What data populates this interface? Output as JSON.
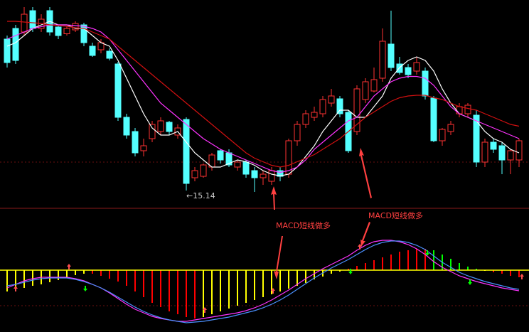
{
  "chart_data": [
    {
      "type": "candlestick",
      "ylim": [
        14.64,
        20.5
      ],
      "up_color": "#ff3232",
      "down_color": "#54ffff",
      "open": [
        19.4,
        19.7,
        19.6,
        20.2,
        19.7,
        20.2,
        19.74,
        19.55,
        19.66,
        19.8,
        19.2,
        19.1,
        19.06,
        18.7,
        17.2,
        16.8,
        16.26,
        16.6,
        16.8,
        17.06,
        16.7,
        17.14,
        15.5,
        15.54,
        15.8,
        16.26,
        16.2,
        15.8,
        15.94,
        15.7,
        15.5,
        15.4,
        15.7,
        15.6,
        16.54,
        17.0,
        17.2,
        17.3,
        17.6,
        17.72,
        17.34,
        16.8,
        17.7,
        17.94,
        18.3,
        19.26,
        18.7,
        18.6,
        18.5,
        18.5,
        17.74,
        16.54,
        16.8,
        17.3,
        17.3,
        17.26,
        15.94,
        16.5,
        16.4,
        16.0,
        16.0
      ],
      "high": [
        19.5,
        19.8,
        20.3,
        20.3,
        20.1,
        20.3,
        19.8,
        19.76,
        19.9,
        19.86,
        19.3,
        19.4,
        19.14,
        18.76,
        17.3,
        16.9,
        16.6,
        17.1,
        17.2,
        17.1,
        17.0,
        17.2,
        15.8,
        15.9,
        16.2,
        16.3,
        16.3,
        16.0,
        16.0,
        15.8,
        15.7,
        15.8,
        15.8,
        16.6,
        17.1,
        17.4,
        17.5,
        17.8,
        18.0,
        17.8,
        17.4,
        18.1,
        18.3,
        18.6,
        19.7,
        20.2,
        18.9,
        18.7,
        18.9,
        18.6,
        17.8,
        16.9,
        17.1,
        17.6,
        17.6,
        17.4,
        16.6,
        16.6,
        16.5,
        16.3,
        16.6
      ],
      "low": [
        18.6,
        18.7,
        19.5,
        19.6,
        19.6,
        19.5,
        19.4,
        19.5,
        19.6,
        19.2,
        18.9,
        19.0,
        18.8,
        17.1,
        16.6,
        16.1,
        16.1,
        16.5,
        16.7,
        16.7,
        16.6,
        15.14,
        15.4,
        15.5,
        15.7,
        15.9,
        15.8,
        15.7,
        15.5,
        15.1,
        15.3,
        15.3,
        15.4,
        15.5,
        16.4,
        16.9,
        17.1,
        17.2,
        17.5,
        17.2,
        16.2,
        16.7,
        17.6,
        17.9,
        18.2,
        18.5,
        18.4,
        18.3,
        18.4,
        17.7,
        16.5,
        16.4,
        16.7,
        17.2,
        17.2,
        15.8,
        15.8,
        16.2,
        15.6,
        15.6,
        15.8
      ],
      "close": [
        18.74,
        18.8,
        20.1,
        19.7,
        19.96,
        19.6,
        19.5,
        19.7,
        19.84,
        19.3,
        18.94,
        19.3,
        18.86,
        17.2,
        16.7,
        16.2,
        16.4,
        17.0,
        17.1,
        16.8,
        16.9,
        15.34,
        15.7,
        15.86,
        16.14,
        16.0,
        15.86,
        15.94,
        15.6,
        15.5,
        15.6,
        15.7,
        15.54,
        16.54,
        17.0,
        17.3,
        17.34,
        17.7,
        17.8,
        17.3,
        16.26,
        18.0,
        18.2,
        18.26,
        19.34,
        18.6,
        18.46,
        18.4,
        18.74,
        17.8,
        16.54,
        16.86,
        17.0,
        17.5,
        17.54,
        15.94,
        16.5,
        16.3,
        16.0,
        16.26,
        16.54
      ],
      "series": [
        {
          "color": "#ffffff",
          "values": [
            19.2,
            19.3,
            19.5,
            19.7,
            19.8,
            19.9,
            19.8,
            19.8,
            19.7,
            19.7,
            19.5,
            19.3,
            19.2,
            18.8,
            18.3,
            17.8,
            17.3,
            16.9,
            16.7,
            16.7,
            16.8,
            16.5,
            16.2,
            16.0,
            15.8,
            15.8,
            15.9,
            16.0,
            15.95,
            15.85,
            15.7,
            15.6,
            15.55,
            15.6,
            15.8,
            16.1,
            16.4,
            16.8,
            17.1,
            17.4,
            17.4,
            17.2,
            17.2,
            17.5,
            17.8,
            18.3,
            18.6,
            18.8,
            18.9,
            18.8,
            18.5,
            18.0,
            17.6,
            17.3,
            17.2,
            17.1,
            16.8,
            16.6,
            16.5,
            16.3,
            16.2
          ]
        },
        {
          "color": "#ff33ff",
          "values": [
            19.4,
            19.5,
            19.6,
            19.7,
            19.75,
            19.8,
            19.8,
            19.8,
            19.78,
            19.76,
            19.7,
            19.6,
            19.4,
            19.1,
            18.8,
            18.5,
            18.2,
            17.9,
            17.6,
            17.4,
            17.2,
            17.0,
            16.8,
            16.6,
            16.45,
            16.3,
            16.2,
            16.1,
            16.0,
            15.9,
            15.8,
            15.7,
            15.65,
            15.7,
            15.8,
            16.0,
            16.3,
            16.5,
            16.7,
            16.9,
            17.1,
            17.2,
            17.5,
            17.8,
            18.0,
            18.2,
            18.3,
            18.35,
            18.35,
            18.3,
            18.1,
            17.8,
            17.5,
            17.3,
            17.2,
            17.1,
            17.0,
            16.9,
            16.8,
            16.7,
            16.6
          ]
        },
        {
          "color": "#d01010",
          "values": [
            19.9,
            19.9,
            19.88,
            19.86,
            19.84,
            19.8,
            19.78,
            19.76,
            19.72,
            19.7,
            19.6,
            19.5,
            19.4,
            19.2,
            19.0,
            18.8,
            18.6,
            18.4,
            18.2,
            18.0,
            17.8,
            17.6,
            17.4,
            17.2,
            17.0,
            16.8,
            16.6,
            16.4,
            16.2,
            16.05,
            15.95,
            15.85,
            15.8,
            15.85,
            15.95,
            16.05,
            16.15,
            16.3,
            16.45,
            16.6,
            16.8,
            17.0,
            17.2,
            17.35,
            17.5,
            17.65,
            17.75,
            17.8,
            17.82,
            17.82,
            17.75,
            17.7,
            17.6,
            17.5,
            17.45,
            17.4,
            17.3,
            17.2,
            17.1,
            17.0,
            16.95
          ]
        }
      ],
      "annotations": [
        {
          "text": "←15.14",
          "index": 21
        },
        {
          "text": "MACD短线做多"
        },
        {
          "text": "MACD短线做多"
        }
      ]
    },
    {
      "type": "macd",
      "ylim": [
        -0.87,
        0.43
      ],
      "values": [
        -0.3,
        -0.28,
        -0.25,
        -0.22,
        -0.2,
        -0.17,
        -0.14,
        -0.1,
        -0.07,
        -0.05,
        -0.05,
        -0.08,
        -0.12,
        -0.16,
        -0.22,
        -0.3,
        -0.38,
        -0.46,
        -0.52,
        -0.58,
        -0.62,
        -0.66,
        -0.68,
        -0.66,
        -0.62,
        -0.58,
        -0.54,
        -0.5,
        -0.46,
        -0.42,
        -0.38,
        -0.34,
        -0.3,
        -0.26,
        -0.22,
        -0.18,
        -0.13,
        -0.09,
        -0.05,
        -0.02,
        0.02,
        0.06,
        0.1,
        0.14,
        0.18,
        0.22,
        0.26,
        0.28,
        0.3,
        0.3,
        0.28,
        0.22,
        0.16,
        0.1,
        0.05,
        0.02,
        -0.01,
        -0.03,
        -0.05,
        -0.08,
        -0.1
      ],
      "colors": [
        "#ffff00",
        "#ffff00",
        "#ffff00",
        "#ffff00",
        "#ffff00",
        "#ffff00",
        "#ffff00",
        "#ffff00",
        "#ffff00",
        "#ffff00",
        "#ff0000",
        "#ff0000",
        "#ff0000",
        "#ff0000",
        "#ff0000",
        "#ff0000",
        "#ff0000",
        "#ff0000",
        "#ff0000",
        "#ff0000",
        "#ff0000",
        "#ff0000",
        "#ff0000",
        "#ffff00",
        "#ffff00",
        "#ffff00",
        "#ffff00",
        "#ffff00",
        "#ffff00",
        "#ffff00",
        "#ffff00",
        "#ffff00",
        "#ffff00",
        "#ffff00",
        "#ffff00",
        "#ffff00",
        "#ffff00",
        "#ffff00",
        "#ffff00",
        "#ffff00",
        "#ff0000",
        "#ff0000",
        "#ff0000",
        "#ff0000",
        "#ff0000",
        "#ff0000",
        "#ff0000",
        "#ff0000",
        "#ff0000",
        "#ff0000",
        "#00ff00",
        "#00ff00",
        "#00ff00",
        "#00ff00",
        "#00ff00",
        "#00ff00",
        "#ffff00",
        "#ff0000",
        "#ff0000",
        "#ff0000",
        "#ff0000"
      ],
      "series": [
        {
          "color": "#ff33ff",
          "values": [
            -0.25,
            -0.2,
            -0.15,
            -0.12,
            -0.1,
            -0.1,
            -0.1,
            -0.1,
            -0.12,
            -0.15,
            -0.2,
            -0.25,
            -0.32,
            -0.4,
            -0.48,
            -0.55,
            -0.6,
            -0.65,
            -0.68,
            -0.7,
            -0.72,
            -0.72,
            -0.7,
            -0.68,
            -0.66,
            -0.64,
            -0.62,
            -0.6,
            -0.57,
            -0.53,
            -0.48,
            -0.42,
            -0.35,
            -0.28,
            -0.2,
            -0.12,
            -0.05,
            0.02,
            0.08,
            0.14,
            0.2,
            0.28,
            0.35,
            0.4,
            0.42,
            0.42,
            0.4,
            0.36,
            0.3,
            0.22,
            0.12,
            0.04,
            -0.02,
            -0.08,
            -0.12,
            -0.16,
            -0.19,
            -0.22,
            -0.25,
            -0.27,
            -0.29
          ]
        },
        {
          "color": "#4a90ff",
          "values": [
            -0.22,
            -0.2,
            -0.17,
            -0.14,
            -0.12,
            -0.11,
            -0.11,
            -0.11,
            -0.13,
            -0.16,
            -0.2,
            -0.25,
            -0.31,
            -0.38,
            -0.45,
            -0.52,
            -0.58,
            -0.63,
            -0.67,
            -0.7,
            -0.72,
            -0.74,
            -0.73,
            -0.72,
            -0.7,
            -0.68,
            -0.66,
            -0.63,
            -0.6,
            -0.57,
            -0.53,
            -0.48,
            -0.42,
            -0.35,
            -0.27,
            -0.19,
            -0.11,
            -0.04,
            0.03,
            0.09,
            0.15,
            0.22,
            0.29,
            0.35,
            0.39,
            0.41,
            0.41,
            0.39,
            0.35,
            0.29,
            0.2,
            0.11,
            0.04,
            -0.03,
            -0.08,
            -0.12,
            -0.16,
            -0.19,
            -0.22,
            -0.25,
            -0.27
          ]
        }
      ]
    }
  ]
}
